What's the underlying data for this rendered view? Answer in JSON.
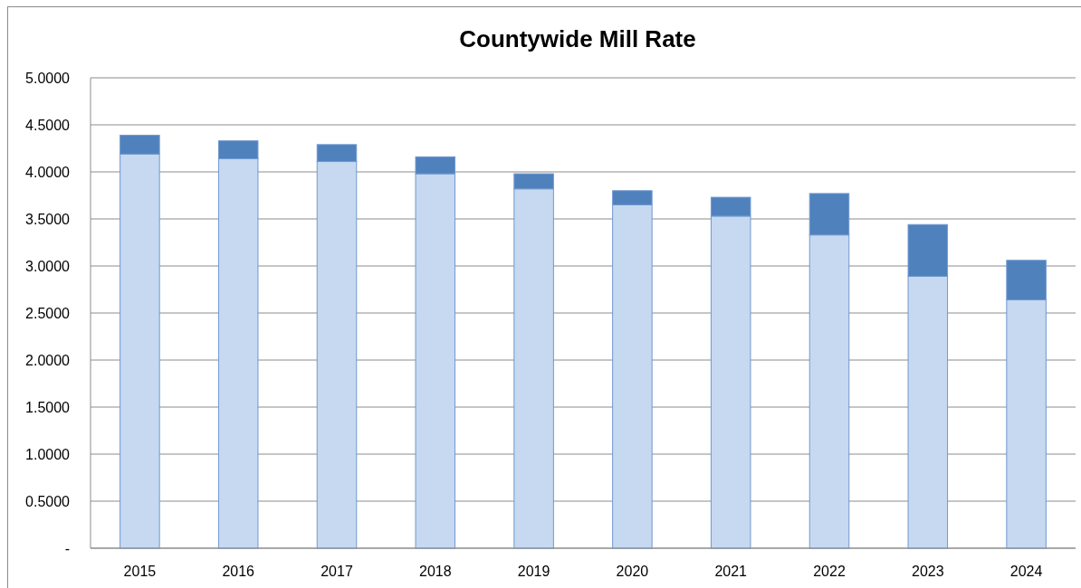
{
  "chart_data": {
    "type": "bar",
    "title": "Countywide Mill Rate",
    "categories": [
      "2015",
      "2016",
      "2017",
      "2018",
      "2019",
      "2020",
      "2021",
      "2022",
      "2023",
      "2024"
    ],
    "series": [
      {
        "color": "#c6d9f0",
        "values": [
          4.19,
          4.14,
          4.11,
          3.98,
          3.82,
          3.65,
          3.53,
          3.33,
          2.89,
          2.64
        ]
      },
      {
        "color": "#4f81bd",
        "values": [
          0.2,
          0.19,
          0.18,
          0.18,
          0.16,
          0.15,
          0.2,
          0.44,
          0.55,
          0.42
        ]
      }
    ],
    "stacked": true,
    "ylim": [
      0,
      5
    ],
    "yticks": [
      {
        "value": 0,
        "label": "-"
      },
      {
        "value": 0.5,
        "label": "0.5000"
      },
      {
        "value": 1,
        "label": "1.0000"
      },
      {
        "value": 1.5,
        "label": "1.5000"
      },
      {
        "value": 2,
        "label": "2.0000"
      },
      {
        "value": 2.5,
        "label": "2.5000"
      },
      {
        "value": 3,
        "label": "3.0000"
      },
      {
        "value": 3.5,
        "label": "3.5000"
      },
      {
        "value": 4,
        "label": "4.0000"
      },
      {
        "value": 4.5,
        "label": "4.5000"
      },
      {
        "value": 5,
        "label": "5.0000"
      }
    ],
    "grid": "y"
  }
}
